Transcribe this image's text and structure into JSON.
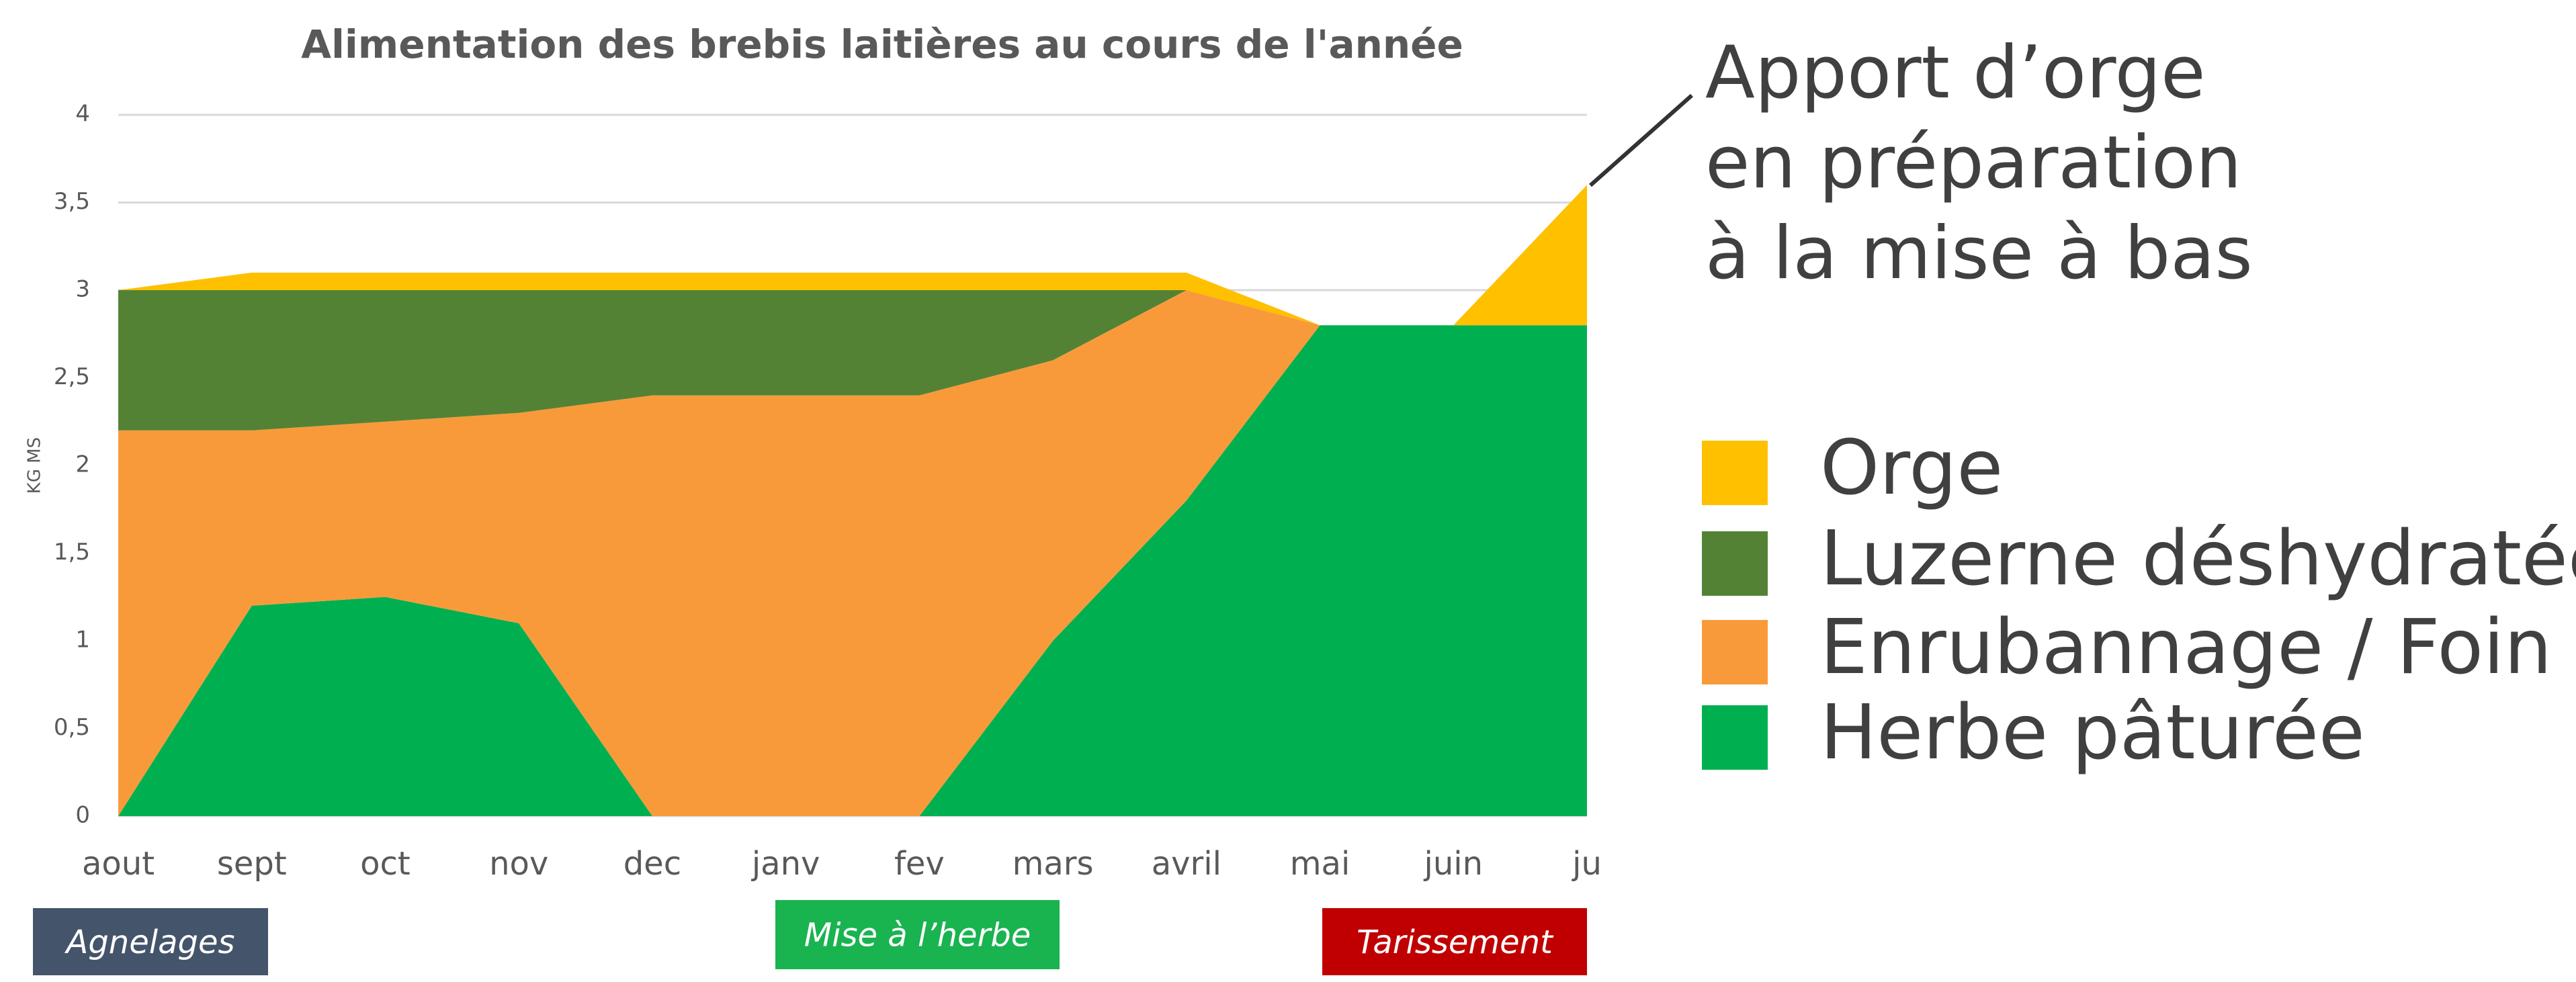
{
  "chart_data": {
    "type": "stacked_area",
    "title": "Alimentation des brebis laitières au cours de l'année",
    "ylabel": "KG MS",
    "categories": [
      "aout",
      "sept",
      "oct",
      "nov",
      "dec",
      "janv",
      "fev",
      "mars",
      "avril",
      "mai",
      "juin",
      "ju"
    ],
    "series": [
      {
        "name": "Herbe pâturée",
        "color": "#00b050",
        "values": [
          0,
          1.2,
          1.25,
          1.1,
          0,
          0,
          0,
          1.0,
          1.8,
          2.8,
          2.8,
          2.8
        ]
      },
      {
        "name": "Enrubannage / Foin",
        "color": "#f99a3a",
        "values": [
          2.2,
          1.0,
          1.0,
          1.2,
          2.4,
          2.4,
          2.4,
          1.6,
          1.2,
          0,
          0,
          0
        ]
      },
      {
        "name": "Luzerne déshydratée",
        "color": "#548235",
        "values": [
          0.8,
          0.8,
          0.75,
          0.7,
          0.6,
          0.6,
          0.6,
          0.4,
          0,
          0,
          0,
          0
        ]
      },
      {
        "name": "Orge",
        "color": "#ffc000",
        "values": [
          0,
          0.1,
          0.1,
          0.1,
          0.1,
          0.1,
          0.1,
          0.1,
          0.1,
          0,
          0,
          0.8
        ]
      }
    ],
    "ylim": [
      0,
      4
    ],
    "yticks": [
      0,
      {
        "value": 0.5,
        "label": "0,5"
      },
      1,
      {
        "value": 1.5,
        "label": "1,5"
      },
      2,
      {
        "value": 2.5,
        "label": "2,5"
      },
      3,
      {
        "value": 3.5,
        "label": "3,5"
      },
      4
    ],
    "grid": true,
    "annotation": [
      "Apport d’orge",
      "en préparation",
      "à la mise à bas"
    ],
    "periods": [
      {
        "label": "Agnelages",
        "color": "#44546a"
      },
      {
        "label": "Mise à l’herbe",
        "color": "#19b350"
      },
      {
        "label": "Tarissement",
        "color": "#c00000"
      }
    ]
  }
}
